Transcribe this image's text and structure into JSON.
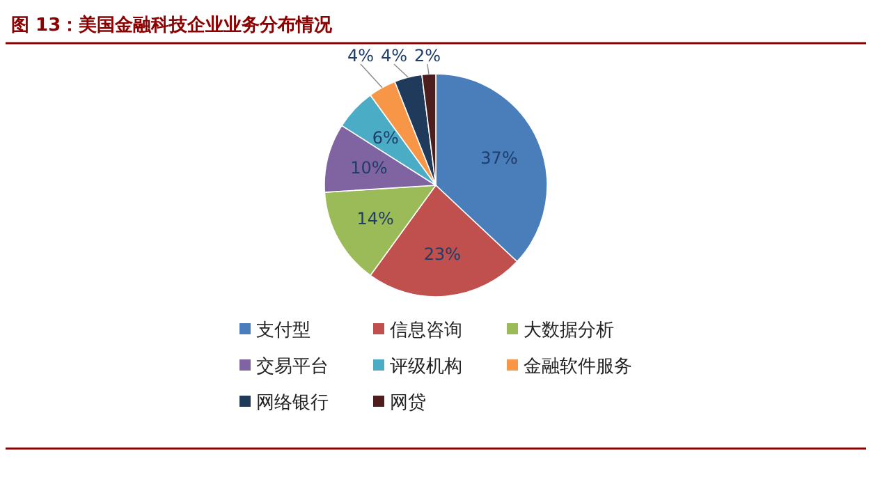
{
  "chart_data": {
    "type": "pie",
    "title": "图 13：美国金融科技企业业务分布情况",
    "categories": [
      "支付型",
      "信息咨询",
      "大数据分析",
      "交易平台",
      "评级机构",
      "金融软件服务",
      "网络银行",
      "网贷"
    ],
    "values": [
      37,
      23,
      14,
      10,
      6,
      4,
      4,
      2
    ],
    "value_labels": [
      "37%",
      "23%",
      "14%",
      "10%",
      "6%",
      "4%",
      "4%",
      "2%"
    ],
    "colors": [
      "#4a7ebb",
      "#c0504d",
      "#9bbb59",
      "#8064a2",
      "#4bacc6",
      "#f79646",
      "#1f3a5a",
      "#4d1e1e"
    ],
    "legend": "bottom"
  }
}
